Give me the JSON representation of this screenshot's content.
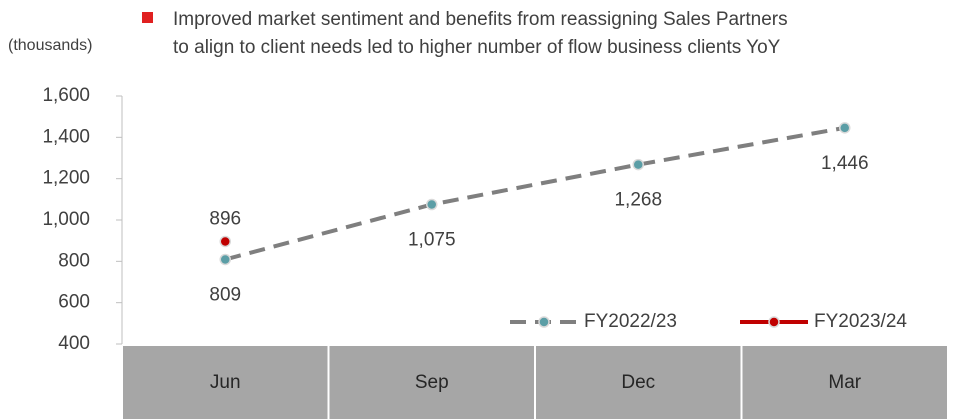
{
  "chart_data": {
    "type": "line",
    "y_axis_label": "(thousands)",
    "annotation": [
      "Improved market sentiment and benefits from reassigning Sales Partners",
      "to align to client needs led to higher number of flow business clients YoY"
    ],
    "categories": [
      "Jun",
      "Sep",
      "Dec",
      "Mar"
    ],
    "series": [
      {
        "name": "FY2022/23",
        "color": "#7f7f7f",
        "marker_color": "#5b9ea6",
        "dashed": true,
        "values": [
          809,
          1075,
          1268,
          1446
        ],
        "value_labels": [
          "809",
          "1,075",
          "1,268",
          "1,446"
        ]
      },
      {
        "name": "FY2023/24",
        "color": "#c00000",
        "marker_color": "#c00000",
        "dashed": false,
        "values": [
          896,
          null,
          null,
          null
        ],
        "value_labels": [
          "896",
          null,
          null,
          null
        ]
      }
    ],
    "ylim": [
      400,
      1600
    ],
    "yticks": [
      400,
      600,
      800,
      {
        "value": 1000,
        "label": "1,000"
      },
      {
        "value": 1200,
        "label": "1,200"
      },
      {
        "value": 1400,
        "label": "1,400"
      },
      {
        "value": 1600,
        "label": "1,600"
      }
    ],
    "legend": "lower right"
  }
}
